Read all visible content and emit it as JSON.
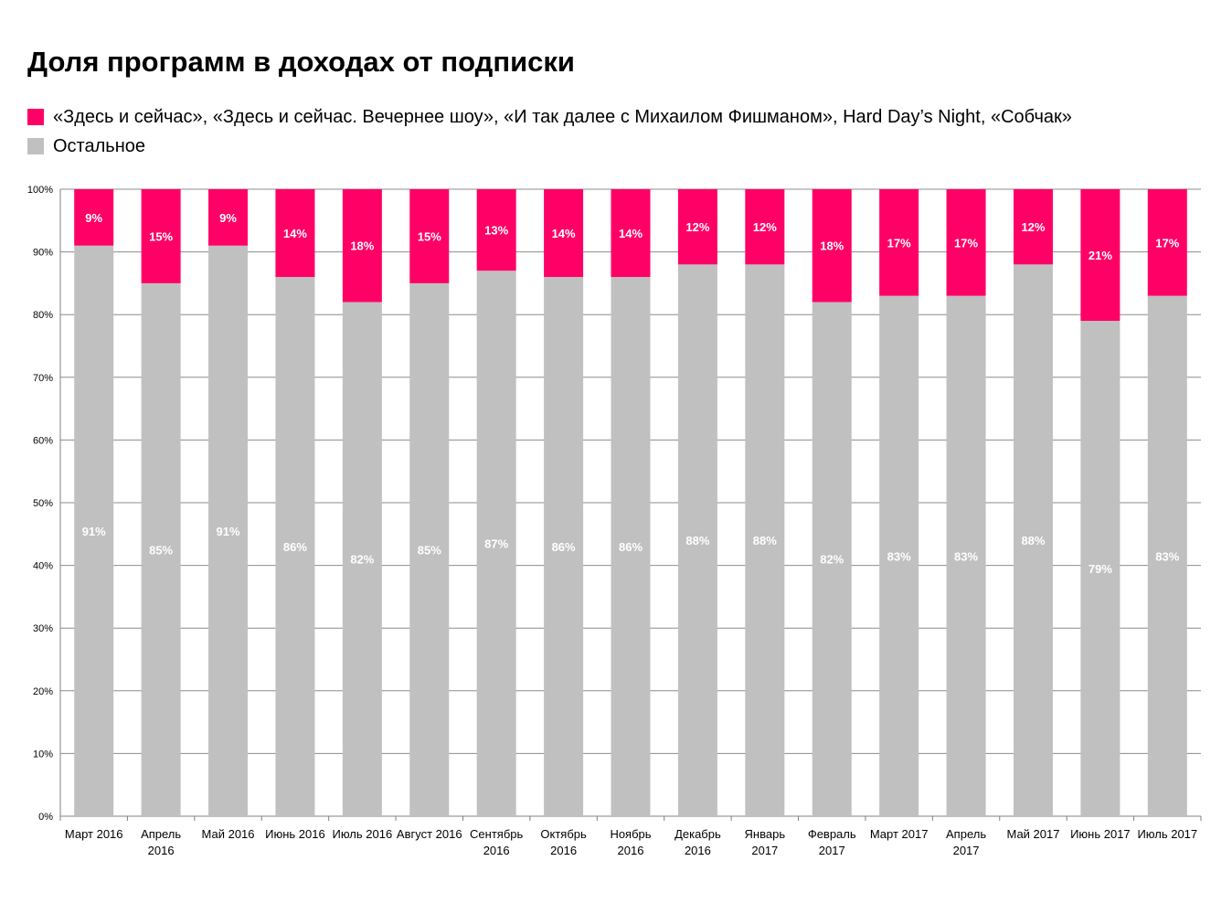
{
  "chart_data": {
    "type": "bar",
    "stacked": true,
    "title": "Доля программ в доходах от подписки",
    "categories": [
      [
        "Март 2016"
      ],
      [
        "Апрель",
        "2016"
      ],
      [
        "Май 2016"
      ],
      [
        "Июнь 2016"
      ],
      [
        "Июль 2016"
      ],
      [
        "Август 2016"
      ],
      [
        "Сентябрь",
        "2016"
      ],
      [
        "Октябрь",
        "2016"
      ],
      [
        "Ноябрь",
        "2016"
      ],
      [
        "Декабрь",
        "2016"
      ],
      [
        "Январь",
        "2017"
      ],
      [
        "Февраль",
        "2017"
      ],
      [
        "Март 2017"
      ],
      [
        "Апрель",
        "2017"
      ],
      [
        "Май 2017"
      ],
      [
        "Июнь 2017"
      ],
      [
        "Июль 2017"
      ]
    ],
    "series": [
      {
        "name": "Остальное",
        "color": "#c0c0c0",
        "values": [
          91,
          85,
          91,
          86,
          82,
          85,
          87,
          86,
          86,
          88,
          88,
          82,
          83,
          83,
          88,
          79,
          83
        ],
        "labels": [
          "91%",
          "85%",
          "91%",
          "86%",
          "82%",
          "85%",
          "87%",
          "86%",
          "86%",
          "88%",
          "88%",
          "82%",
          "83%",
          "83%",
          "88%",
          "79%",
          "83%"
        ]
      },
      {
        "name": "«Здесь и сейчас»,  «Здесь и сейчас. Вечернее шоу», «И так далее с Михаилом Фишманом»,  Hard Day’s Night, «Собчак»",
        "color": "#ff0066",
        "values": [
          9,
          15,
          9,
          14,
          18,
          15,
          13,
          14,
          14,
          12,
          12,
          18,
          17,
          17,
          12,
          21,
          17
        ],
        "labels": [
          "9%",
          "15%",
          "9%",
          "14%",
          "18%",
          "15%",
          "13%",
          "14%",
          "14%",
          "12%",
          "12%",
          "18%",
          "17%",
          "17%",
          "12%",
          "21%",
          "17%"
        ]
      }
    ],
    "y_ticks": [
      "0%",
      "10%",
      "20%",
      "30%",
      "40%",
      "50%",
      "60%",
      "70%",
      "80%",
      "90%",
      "100%"
    ],
    "ylim": [
      0,
      100
    ],
    "grid": true,
    "legend_position": "top-left",
    "legend": [
      {
        "label": "«Здесь и сейчас»,  «Здесь и сейчас. Вечернее шоу», «И так далее с Михаилом Фишманом»,  Hard Day’s Night, «Собчак»",
        "color": "#ff0066"
      },
      {
        "label": "Остальное",
        "color": "#c0c0c0"
      }
    ]
  }
}
